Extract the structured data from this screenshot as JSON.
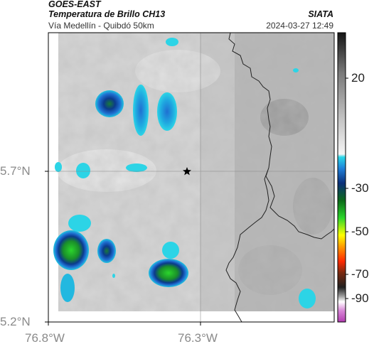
{
  "header": {
    "satellite": "GOES-EAST",
    "product": "Temperatura de Brillo CH13",
    "region": "Vía Medellín - Quibdó 50km",
    "agency": "SIATA",
    "timestamp": "2024-03-27 12:49"
  },
  "axes": {
    "x_ticks": [
      "76.8°W",
      "76.3°W"
    ],
    "y_ticks": [
      "5.7°N",
      "5.2°N"
    ]
  },
  "colorbar": {
    "ticks": [
      "20",
      "-30",
      "-50",
      "-70",
      "-90"
    ],
    "unit": ""
  },
  "map_features": {
    "marker": "star-marker",
    "layers": [
      "brightness-temperature-raster",
      "department-boundary",
      "lat-lon-gridlines"
    ]
  }
}
